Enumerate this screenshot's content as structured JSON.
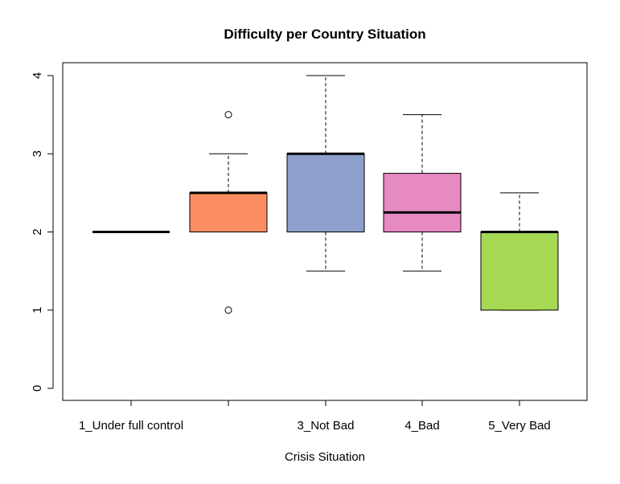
{
  "chart_data": {
    "type": "boxplot",
    "title": "Difficulty per Country Situation",
    "xlabel": "Crisis Situation",
    "ylabel": "",
    "ylim": [
      0,
      4
    ],
    "yticks": [
      "0",
      "1",
      "2",
      "3",
      "4"
    ],
    "categories": [
      "1_Under full control",
      "",
      "3_Not Bad",
      "4_Bad",
      "5_Very Bad"
    ],
    "colors": [
      "#ffffff",
      "#fc8d62",
      "#8da0cb",
      "#e78ac3",
      "#a6d854"
    ],
    "boxes": [
      {
        "lower_whisker": 2,
        "q1": 2,
        "median": 2,
        "q3": 2,
        "upper_whisker": 2,
        "outliers": []
      },
      {
        "lower_whisker": 2,
        "q1": 2,
        "median": 2.5,
        "q3": 2.5,
        "upper_whisker": 3,
        "outliers": [
          1,
          3.5
        ]
      },
      {
        "lower_whisker": 1.5,
        "q1": 2,
        "median": 3,
        "q3": 3,
        "upper_whisker": 4,
        "outliers": []
      },
      {
        "lower_whisker": 1.5,
        "q1": 2,
        "median": 2.25,
        "q3": 2.75,
        "upper_whisker": 3.5,
        "outliers": []
      },
      {
        "lower_whisker": 1,
        "q1": 1,
        "median": 2,
        "q3": 2,
        "upper_whisker": 2.5,
        "outliers": []
      }
    ]
  }
}
